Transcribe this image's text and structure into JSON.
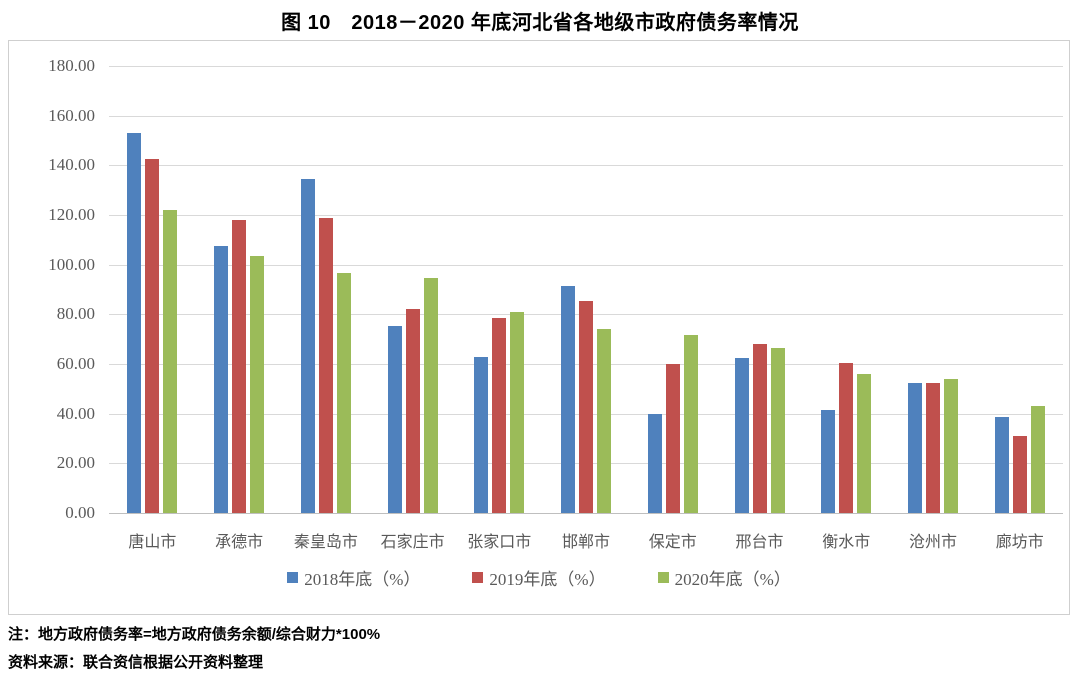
{
  "figure": {
    "title": "图 10　2018－2020 年底河北省各地级市政府债务率情况",
    "note": "注：地方政府债务率=地方政府债务余额/综合财力*100%",
    "source": "资料来源：联合资信根据公开资料整理"
  },
  "colors": {
    "series_2018": "#4F81BD",
    "series_2019": "#C0504D",
    "series_2020": "#9BBB59",
    "gridline": "#D9D9D9",
    "axis_line": "#BFBFBF",
    "axis_text": "#595959",
    "chart_border": "#CFCFCF",
    "title_text": "#000000"
  },
  "chart_data": {
    "type": "bar",
    "title": "图 10　2018－2020 年底河北省各地级市政府债务率情况",
    "xlabel": "",
    "ylabel": "",
    "ylim": [
      0,
      180
    ],
    "ytick_step": 20,
    "ytick_labels": [
      "180.00",
      "160.00",
      "140.00",
      "120.00",
      "100.00",
      "80.00",
      "60.00",
      "40.00",
      "20.00",
      "0.00"
    ],
    "grid": true,
    "legend_position": "bottom",
    "categories": [
      "唐山市",
      "承德市",
      "秦皇岛市",
      "石家庄市",
      "张家口市",
      "邯郸市",
      "保定市",
      "邢台市",
      "衡水市",
      "沧州市",
      "廊坊市"
    ],
    "series": [
      {
        "name": "2018年底（%）",
        "color": "#4F81BD",
        "values": [
          153,
          107.5,
          134.5,
          75.5,
          63,
          91.5,
          40,
          62.5,
          41.5,
          52.5,
          38.5
        ]
      },
      {
        "name": "2019年底（%）",
        "color": "#C0504D",
        "values": [
          142.5,
          118,
          119,
          82,
          78.5,
          85.5,
          60,
          68,
          60.5,
          52.5,
          31
        ]
      },
      {
        "name": "2020年底（%）",
        "color": "#9BBB59",
        "values": [
          122,
          103.5,
          96.5,
          94.5,
          81,
          74,
          71.5,
          66.5,
          56,
          54,
          43
        ]
      }
    ]
  }
}
